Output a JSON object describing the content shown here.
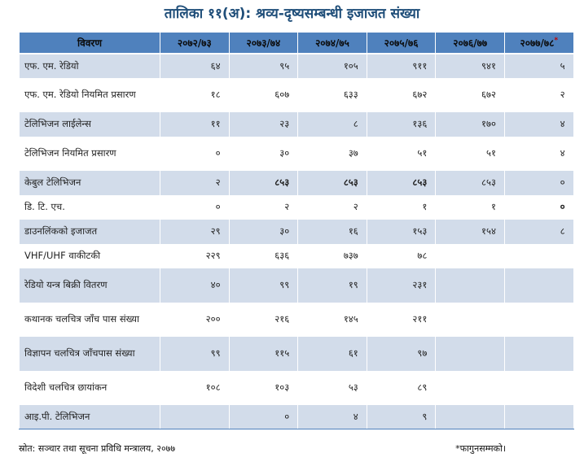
{
  "title": "तालिका ११(अ): श्रव्य-दृष्यसम्बन्धी इजाजत संख्या",
  "headers": [
    "विवरण",
    "२०७२/७३",
    "२०७३/७४",
    "२०७४/७५",
    "२०७५/७६",
    "२०७६/७७",
    "२०७७/७८"
  ],
  "header_mark": "*",
  "rows": [
    {
      "label": "एफ. एम. रेडियो",
      "values": [
        "६४",
        "९५",
        "१०५",
        "९११",
        "९४१",
        "५"
      ]
    },
    {
      "label": "एफ. एम. रेडियो नियमित प्रसारण",
      "values": [
        "१८",
        "६०७",
        "६३३",
        "६७२",
        "६७२",
        "२"
      ]
    },
    {
      "label": "टेलिभिजन लाईलेन्स",
      "values": [
        "११",
        "२३",
        "८",
        "१३६",
        "१७०",
        "४"
      ]
    },
    {
      "label": "टेलिभिजन नियमित प्रसारण",
      "values": [
        "०",
        "३०",
        "३७",
        "५१",
        "५१",
        "४"
      ]
    },
    {
      "label": "केबुल टेलिभिजन",
      "values": [
        "२",
        "८५३",
        "८५३",
        "८५३",
        "८५३",
        "०"
      ]
    },
    {
      "label": "डि. टि. एच.",
      "values": [
        "०",
        "२",
        "२",
        "१",
        "१",
        "०"
      ]
    },
    {
      "label": "डाउनलिंकको इजाजत",
      "values": [
        "२९",
        "३०",
        "१६",
        "१५३",
        "१५४",
        "८"
      ]
    },
    {
      "label": "VHF/UHF वाकीटकी",
      "values": [
        "२२९",
        "६३६",
        "७३७",
        "७८",
        "",
        ""
      ]
    },
    {
      "label": "रेडियो यन्त्र बिक्री वितरण",
      "values": [
        "४०",
        "९९",
        "१९",
        "२३१",
        "",
        ""
      ]
    },
    {
      "label": "कथानक चलचित्र जाँच पास संख्या",
      "values": [
        "२००",
        "२१६",
        "१४५",
        "२११",
        "",
        ""
      ]
    },
    {
      "label": "विज्ञापन चलचित्र जाँचपास संख्या",
      "values": [
        "९९",
        "११५",
        "६१",
        "९७",
        "",
        ""
      ]
    },
    {
      "label": "विदेशी चलचित्र छायांकन",
      "values": [
        "१०८",
        "१०३",
        "५३",
        "८९",
        "",
        ""
      ]
    },
    {
      "label": "आइ.पी. टेलिभिजन",
      "values": [
        "",
        "०",
        "४",
        "९",
        "",
        ""
      ]
    }
  ],
  "source": "स्रोत: सञ्चार तथा सूचना प्रविधि मन्त्रालय, २०७७",
  "footnote": "*फागुनसम्मको।",
  "colors": {
    "header_bg": "#4f81bd",
    "stripe_bg": "#d2dcea",
    "title_color": "#1f4e79"
  }
}
